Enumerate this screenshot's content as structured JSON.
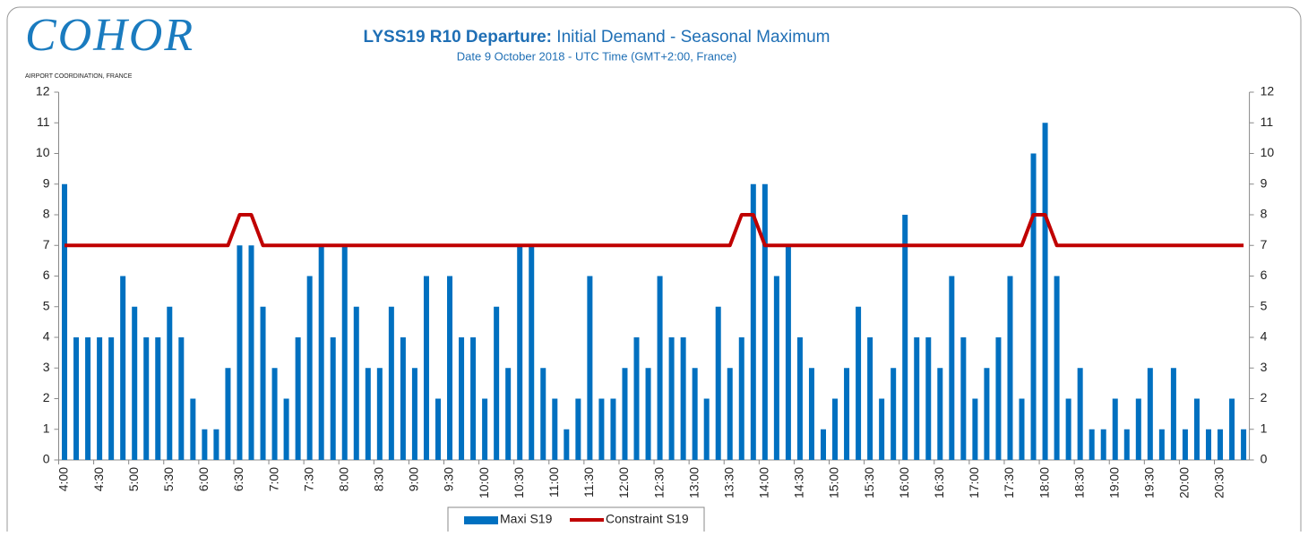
{
  "logo": {
    "name": "COHOR",
    "tagline": "AIRPORT COORDINATION, FRANCE"
  },
  "chart_data": {
    "type": "bar",
    "title": [
      "LYSS19 R10 Departure:",
      "Initial Demand - Seasonal Maximum"
    ],
    "subtitle": "Date 9 October 2018 - UTC Time (GMT+2:00, France)",
    "categories": [
      "4:00",
      null,
      null,
      "4:30",
      null,
      null,
      "5:00",
      null,
      null,
      "5:30",
      null,
      null,
      "6:00",
      null,
      null,
      "6:30",
      null,
      null,
      "7:00",
      null,
      null,
      "7:30",
      null,
      null,
      "8:00",
      null,
      null,
      "8:30",
      null,
      null,
      "9:00",
      null,
      null,
      "9:30",
      null,
      null,
      "10:00",
      null,
      null,
      "10:30",
      null,
      null,
      "11:00",
      null,
      null,
      "11:30",
      null,
      null,
      "12:00",
      null,
      null,
      "12:30",
      null,
      null,
      "13:00",
      null,
      null,
      "13:30",
      null,
      null,
      "14:00",
      null,
      null,
      "14:30",
      null,
      null,
      "15:00",
      null,
      null,
      "15:30",
      null,
      null,
      "16:00",
      null,
      null,
      "16:30",
      null,
      null,
      "17:00",
      null,
      null,
      "17:30",
      null,
      null,
      "18:00",
      null,
      null,
      "18:30",
      null,
      null,
      "19:00",
      null,
      null,
      "19:30",
      null,
      null,
      "20:00",
      null,
      null,
      "20:30",
      null,
      null
    ],
    "series": [
      {
        "name": "Maxi S19",
        "type": "bar",
        "color": "#0070c0",
        "values": [
          9,
          4,
          4,
          4,
          4,
          6,
          5,
          4,
          4,
          5,
          4,
          2,
          1,
          1,
          3,
          7,
          7,
          5,
          3,
          2,
          4,
          6,
          7,
          4,
          7,
          5,
          3,
          3,
          5,
          4,
          3,
          6,
          2,
          6,
          4,
          4,
          2,
          5,
          3,
          7,
          7,
          3,
          2,
          1,
          2,
          6,
          2,
          2,
          3,
          4,
          3,
          6,
          4,
          4,
          3,
          2,
          5,
          3,
          4,
          9,
          9,
          6,
          7,
          4,
          3,
          1,
          2,
          3,
          5,
          4,
          2,
          3,
          8,
          4,
          4,
          3,
          6,
          4,
          2,
          3,
          4,
          6,
          2,
          10,
          11,
          6,
          2,
          3,
          1,
          1,
          2,
          1,
          2,
          3,
          1,
          3,
          1,
          2,
          1,
          1,
          2,
          1
        ]
      },
      {
        "name": "Constraint S19",
        "type": "line",
        "color": "#c00000",
        "values": [
          7,
          7,
          7,
          7,
          7,
          7,
          7,
          7,
          7,
          7,
          7,
          7,
          7,
          7,
          7,
          8,
          8,
          7,
          7,
          7,
          7,
          7,
          7,
          7,
          7,
          7,
          7,
          7,
          7,
          7,
          7,
          7,
          7,
          7,
          7,
          7,
          7,
          7,
          7,
          7,
          7,
          7,
          7,
          7,
          7,
          7,
          7,
          7,
          7,
          7,
          7,
          7,
          7,
          7,
          7,
          7,
          7,
          7,
          8,
          8,
          7,
          7,
          7,
          7,
          7,
          7,
          7,
          7,
          7,
          7,
          7,
          7,
          7,
          7,
          7,
          7,
          7,
          7,
          7,
          7,
          7,
          7,
          7,
          8,
          8,
          7,
          7,
          7,
          7,
          7,
          7,
          7,
          7,
          7,
          7,
          7,
          7,
          7,
          7,
          7,
          7,
          7
        ]
      }
    ],
    "ylim": [
      0,
      12
    ],
    "yticks": [
      0,
      1,
      2,
      3,
      4,
      5,
      6,
      7,
      8,
      9,
      10,
      11,
      12
    ],
    "y2lim": [
      0,
      12
    ],
    "y2ticks": [
      0,
      1,
      2,
      3,
      4,
      5,
      6,
      7,
      8,
      9,
      10,
      11,
      12
    ],
    "legend": "bottom"
  }
}
